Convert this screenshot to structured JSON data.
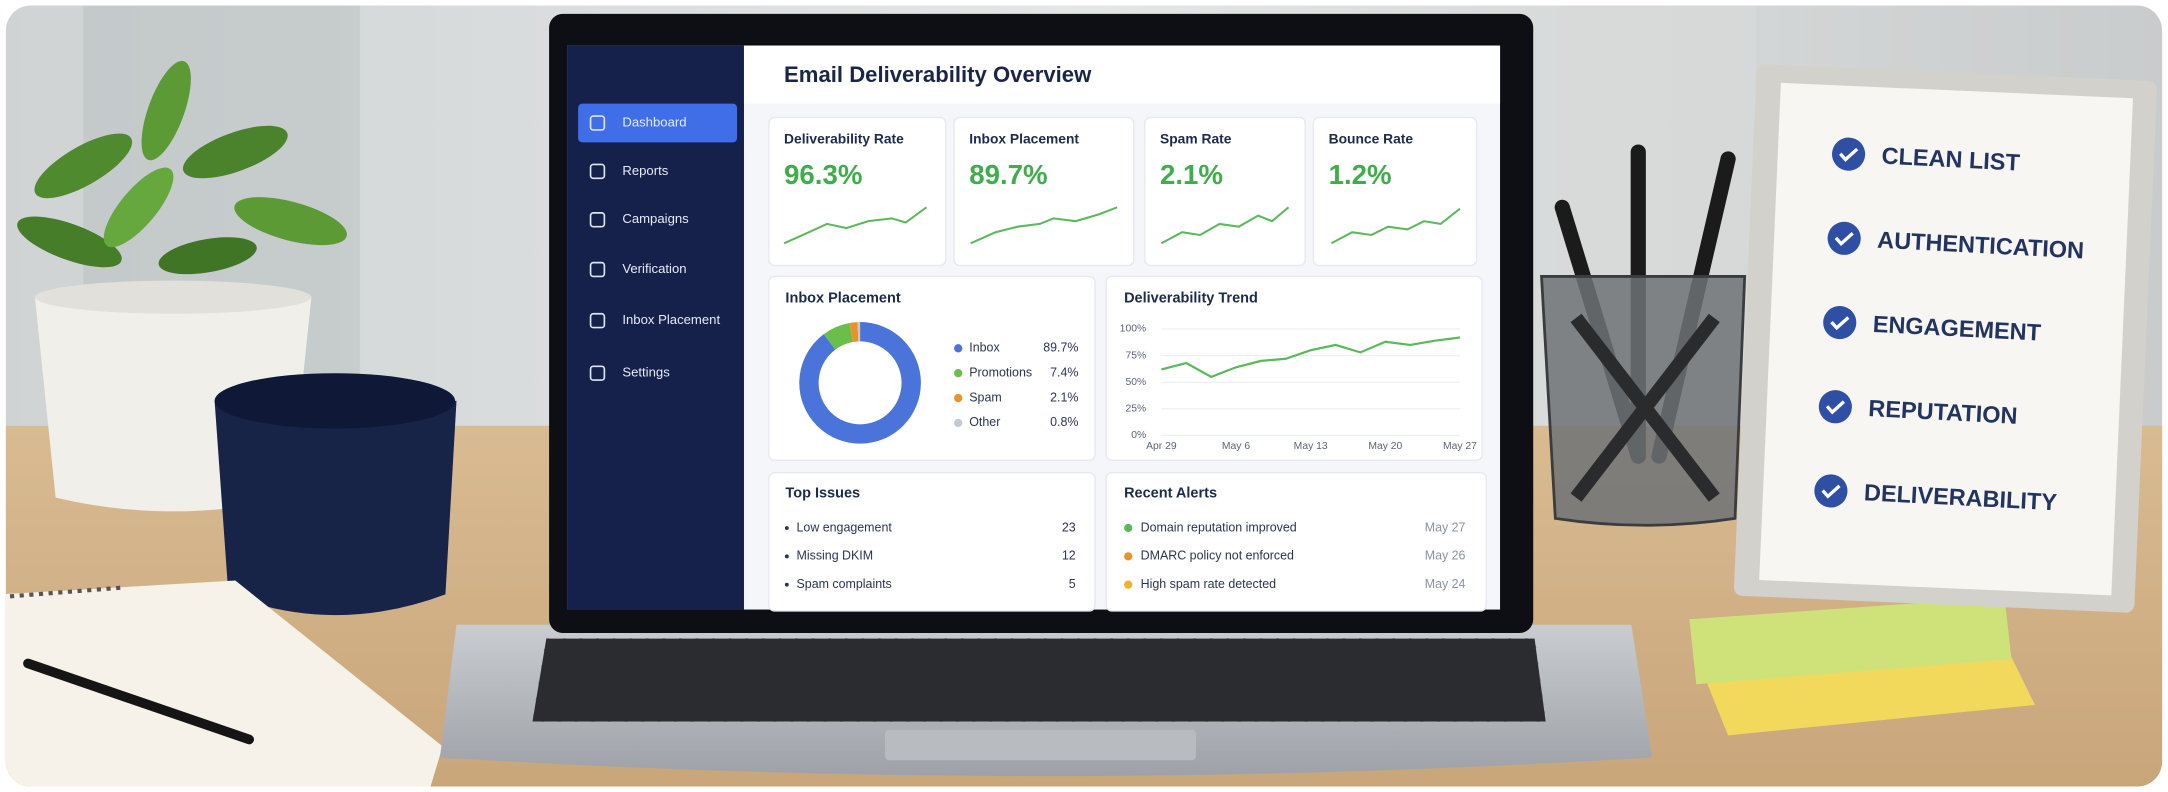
{
  "header": {
    "title": "Email Deliverability Overview"
  },
  "sidebar": {
    "items": [
      "Dashboard",
      "Reports",
      "Campaigns",
      "Verification",
      "Inbox Placement",
      "Settings"
    ]
  },
  "kpis": [
    {
      "label": "Deliverability Rate",
      "value": "96.3%"
    },
    {
      "label": "Inbox Placement",
      "value": "89.7%"
    },
    {
      "label": "Spam Rate",
      "value": "2.1%"
    },
    {
      "label": "Bounce Rate",
      "value": "1.2%"
    }
  ],
  "inbox_placement": {
    "title": "Inbox Placement",
    "segments": [
      {
        "name": "Inbox",
        "value": 89.7,
        "label": "89.7%",
        "color": "#4a74d9"
      },
      {
        "name": "Promotions",
        "value": 7.4,
        "label": "7.4%",
        "color": "#6abf4b"
      },
      {
        "name": "Spam",
        "value": 2.1,
        "label": "2.1%",
        "color": "#e8932a"
      },
      {
        "name": "Other",
        "value": 0.8,
        "label": "0.8%",
        "color": "#c5c9d1"
      }
    ]
  },
  "trend": {
    "title": "Deliverability Trend",
    "categories": [
      "Apr 29",
      null,
      null,
      "May 6",
      null,
      null,
      "May 13",
      null,
      null,
      "May 20",
      null,
      null,
      "May 27"
    ],
    "values": [
      62,
      68,
      55,
      64,
      70,
      72,
      80,
      85,
      78,
      88,
      85,
      89,
      92
    ],
    "ylim": [
      0,
      100
    ],
    "yticks": [
      {
        "value": 0,
        "label": "0%"
      },
      {
        "value": 25,
        "label": "25%"
      },
      {
        "value": 50,
        "label": "50%"
      },
      {
        "value": 75,
        "label": "75%"
      },
      {
        "value": 100,
        "label": "100%"
      }
    ],
    "color": "#5cb85c",
    "grid": true
  },
  "top_issues": {
    "title": "Top Issues",
    "rows": [
      {
        "label": "Low engagement",
        "count": 23
      },
      {
        "label": "Missing DKIM",
        "count": 12
      },
      {
        "label": "Spam complaints",
        "count": 5
      }
    ]
  },
  "recent_alerts": {
    "title": "Recent Alerts",
    "rows": [
      {
        "text": "Domain reputation improved",
        "date": "May 27",
        "color": "#5cb85c"
      },
      {
        "text": "DMARC policy not enforced",
        "date": "May 26",
        "color": "#e8932a"
      },
      {
        "text": "High spam rate detected",
        "date": "May 24",
        "color": "#f0b429"
      }
    ]
  },
  "checklist": {
    "items": [
      "CLEAN LIST",
      "AUTHENTICATION",
      "ENGAGEMENT",
      "REPUTATION",
      "DELIVERABILITY"
    ]
  }
}
